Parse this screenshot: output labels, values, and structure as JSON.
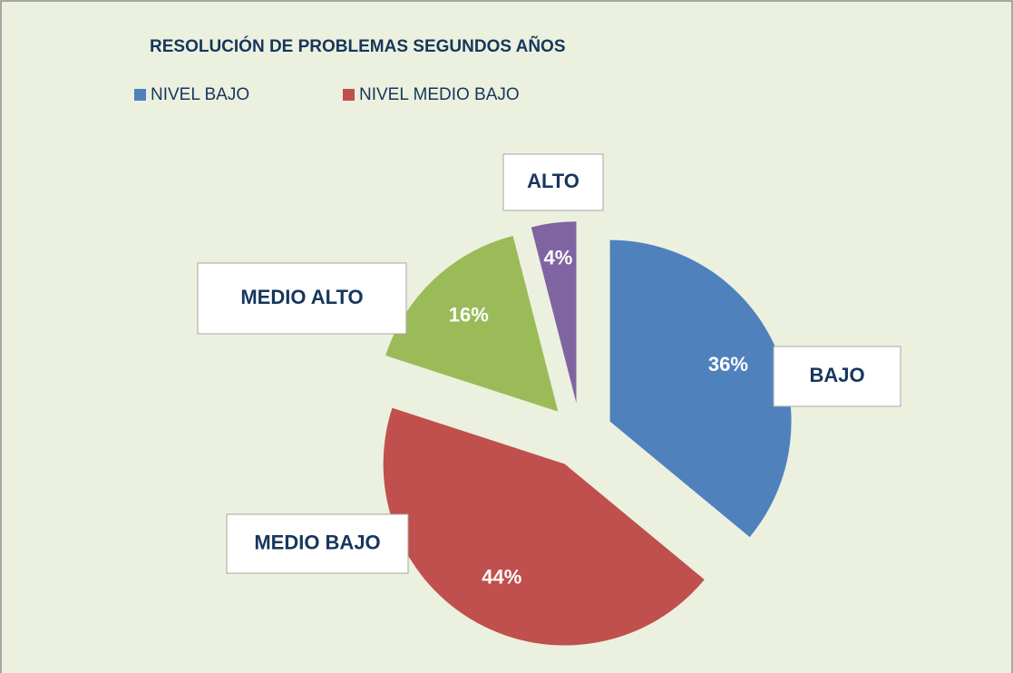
{
  "chart_data": {
    "type": "pie",
    "title": "RESOLUCIÓN DE PROBLEMAS SEGUNDOS AÑOS",
    "categories": [
      "BAJO",
      "MEDIO BAJO",
      "MEDIO ALTO",
      "ALTO"
    ],
    "values": [
      36,
      44,
      16,
      4
    ],
    "value_labels": [
      "36%",
      "44%",
      "16%",
      "4%"
    ],
    "colors": [
      "#4f81bd",
      "#c0504d",
      "#9bbb59",
      "#8064a2"
    ],
    "legend": [
      {
        "name": "NIVEL BAJO",
        "color": "#4f81bd"
      },
      {
        "name": "NIVEL MEDIO BAJO",
        "color": "#c0504d"
      }
    ]
  }
}
